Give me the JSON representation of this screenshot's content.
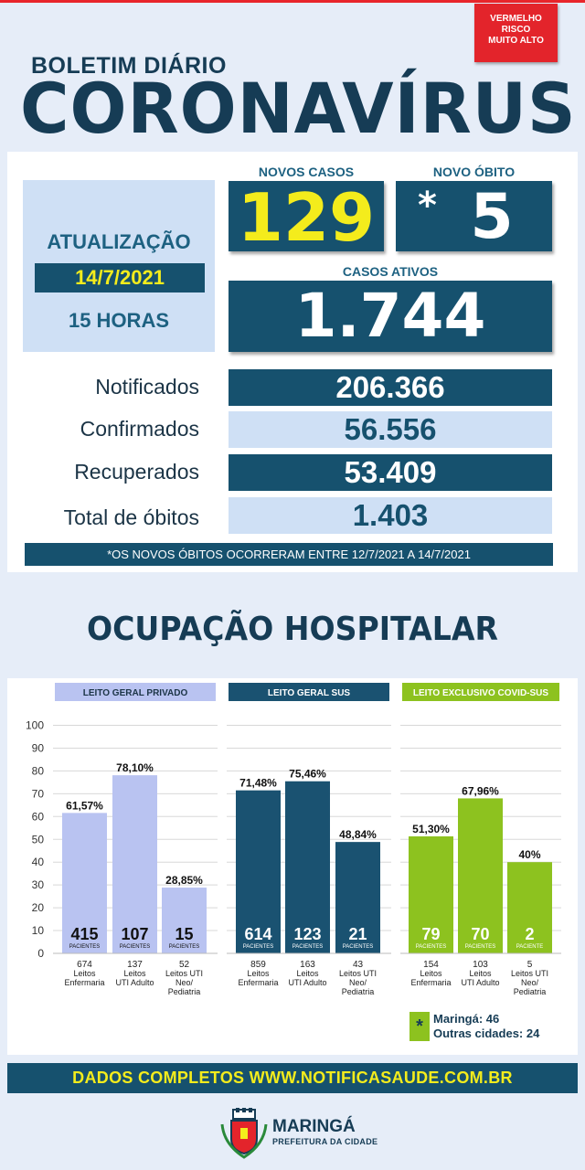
{
  "header": {
    "risk_badge": [
      "VERMELHO",
      "RISCO",
      "MUITO ALTO"
    ],
    "subtitle": "BOLETIM DIÁRIO",
    "title": "CORONAVÍRUS"
  },
  "update": {
    "label": "ATUALIZAÇÃO",
    "date": "14/7/2021",
    "hour": "15 HORAS"
  },
  "highlights": {
    "new_cases_label": "NOVOS CASOS",
    "new_cases_value": "129",
    "new_death_label": "NOVO ÓBITO",
    "new_death_mark": "*",
    "new_death_value": "5",
    "active_cases_label": "CASOS ATIVOS",
    "active_cases_value": "1.744"
  },
  "stats": [
    {
      "label": "Notificados",
      "value": "206.366"
    },
    {
      "label": "Confirmados",
      "value": "56.556"
    },
    {
      "label": "Recuperados",
      "value": "53.409"
    },
    {
      "label": "Total de óbitos",
      "value": "1.403"
    }
  ],
  "note": "*OS NOVOS ÓBITOS OCORRERAM ENTRE 12/7/2021 A 14/7/2021",
  "hospital_title": "OCUPAÇÃO HOSPITALAR",
  "colors": {
    "dark_blue": "#16516e",
    "light_blue": "#cfe0f5",
    "yellow": "#f4ec1c",
    "red": "#e3242b",
    "bar_private": "#b9c3f1",
    "bar_sus": "#1a5271",
    "bar_covid": "#8dc21f"
  },
  "chart_data": {
    "type": "bar",
    "y_ticks": [
      0,
      10,
      20,
      30,
      40,
      50,
      60,
      70,
      80,
      90,
      100
    ],
    "ylim": [
      0,
      100
    ],
    "grid": true,
    "patients_label": "PACIENTES",
    "patients_label_singular": "PACIENTE",
    "groups": [
      {
        "name": "LEITO GERAL PRIVADO",
        "color": "#b9c3f1",
        "header_color": "#b9c3f1",
        "header_text_color": "#1b3446",
        "bars": [
          {
            "pct": 61.57,
            "pct_label": "61,57%",
            "patients": "415",
            "beds": "674",
            "type": [
              "Leitos",
              "Enfermaria"
            ]
          },
          {
            "pct": 78.1,
            "pct_label": "78,10%",
            "patients": "107",
            "beds": "137",
            "type": [
              "Leitos",
              "UTI Adulto"
            ]
          },
          {
            "pct": 28.85,
            "pct_label": "28,85%",
            "patients": "15",
            "beds": "52",
            "type": [
              "Leitos UTI",
              "Neo/",
              "Pediatria"
            ]
          }
        ]
      },
      {
        "name": "LEITO GERAL SUS",
        "color": "#1a5271",
        "header_color": "#1a5271",
        "header_text_color": "#ffffff",
        "bars": [
          {
            "pct": 71.48,
            "pct_label": "71,48%",
            "patients": "614",
            "beds": "859",
            "type": [
              "Leitos",
              "Enfermaria"
            ]
          },
          {
            "pct": 75.46,
            "pct_label": "75,46%",
            "patients": "123",
            "beds": "163",
            "type": [
              "Leitos",
              "UTI Adulto"
            ]
          },
          {
            "pct": 48.84,
            "pct_label": "48,84%",
            "patients": "21",
            "beds": "43",
            "type": [
              "Leitos UTI",
              "Neo/",
              "Pediatria"
            ]
          }
        ]
      },
      {
        "name": "LEITO EXCLUSIVO COVID-SUS",
        "color": "#8dc21f",
        "header_color": "#8dc21f",
        "header_text_color": "#ffffff",
        "bars": [
          {
            "pct": 51.3,
            "pct_label": "51,30%",
            "patients": "79",
            "beds": "154",
            "type": [
              "Leitos",
              "Enfermaria"
            ]
          },
          {
            "pct": 67.96,
            "pct_label": "67,96%",
            "patients": "70",
            "beds": "103",
            "type": [
              "Leitos",
              "UTI Adulto"
            ]
          },
          {
            "pct": 40,
            "pct_label": "40%",
            "patients": "2",
            "beds": "5",
            "type": [
              "Leitos UTI",
              "Neo/",
              "Pediatria"
            ]
          }
        ]
      }
    ],
    "legend": {
      "mark": "*",
      "lines": [
        "Maringá: 46",
        "Outras cidades: 24"
      ]
    }
  },
  "footer": {
    "text": "DADOS COMPLETOS  WWW.NOTIFICASAUDE.COM.BR",
    "logo_name": "MARINGÁ",
    "logo_sub": "PREFEITURA DA CIDADE",
    "logo_icon": "city-coat-of-arms-icon"
  }
}
